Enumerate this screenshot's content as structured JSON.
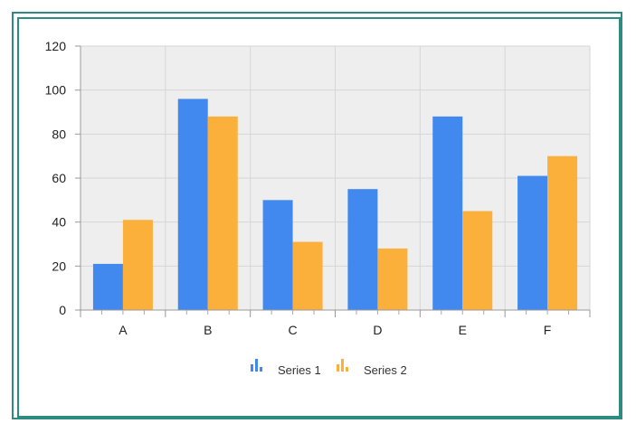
{
  "chart_data": {
    "type": "bar",
    "categories": [
      "A",
      "B",
      "C",
      "D",
      "E",
      "F"
    ],
    "series": [
      {
        "name": "Series 1",
        "values": [
          21,
          96,
          50,
          55,
          88,
          61
        ],
        "color": "#4189ef"
      },
      {
        "name": "Series 2",
        "values": [
          41,
          88,
          31,
          28,
          45,
          70
        ],
        "color": "#fbb03b"
      }
    ],
    "ylim": [
      0,
      120
    ],
    "yticks": [
      0,
      20,
      40,
      60,
      80,
      100,
      120
    ],
    "grid": true,
    "legend": "bottom-center",
    "plot_background": "#eeeeee",
    "frame_color": "#2e8b80"
  }
}
